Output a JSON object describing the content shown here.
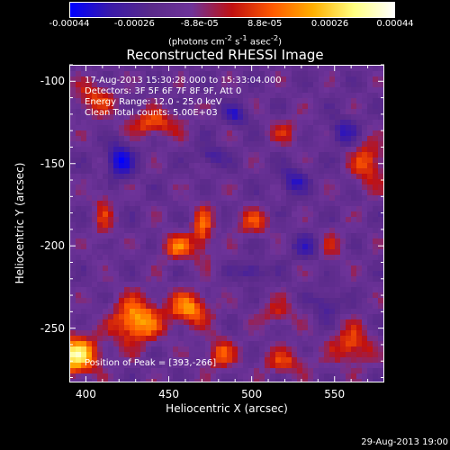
{
  "colorbar": {
    "ticks": [
      "-0.00044",
      "-0.00026",
      "-8.8e-05",
      "8.8e-05",
      "0.00026",
      "0.00044"
    ],
    "units_text": "(photons cm",
    "units_sup1": "-2",
    "units_mid": " s",
    "units_sup2": "-1",
    "units_end": " asec",
    "units_sup3": "-2",
    "units_close": ")",
    "colors": [
      "#0000ff",
      "#3a1aa8",
      "#5a2a8a",
      "#6e3399",
      "#c01010",
      "#ff5a00",
      "#ffb000",
      "#ffff80",
      "#ffffff"
    ]
  },
  "chart_data": {
    "type": "heatmap",
    "title": "Reconstructed RHESSI Image",
    "xlabel": "Heliocentric X (arcsec)",
    "ylabel": "Heliocentric Y (arcsec)",
    "xlim": [
      390,
      580
    ],
    "ylim": [
      -283,
      -90
    ],
    "xticks": [
      400,
      450,
      500,
      550
    ],
    "yticks": [
      -100,
      -150,
      -200,
      -250
    ],
    "info_lines": [
      "17-Aug-2013 15:30:28.000 to 15:33:04.000",
      "Detectors: 3F 5F 6F 7F 8F 9F, Att 0",
      "Energy Range: 12.0 - 25.0 keV",
      "Clean    Total counts: 5.00E+03"
    ],
    "peak_label": "Position of Peak = [393,-266]",
    "peak": [
      393,
      -266
    ],
    "features": [
      {
        "x": 393,
        "y": -266,
        "amp": 1.0,
        "sx": 14,
        "sy": 12
      },
      {
        "x": 430,
        "y": -245,
        "amp": 0.85,
        "sx": 14,
        "sy": 14
      },
      {
        "x": 462,
        "y": -238,
        "amp": 0.75,
        "sx": 12,
        "sy": 10
      },
      {
        "x": 455,
        "y": -200,
        "amp": 0.6,
        "sx": 10,
        "sy": 8
      },
      {
        "x": 470,
        "y": -190,
        "amp": 0.55,
        "sx": 6,
        "sy": 16
      },
      {
        "x": 440,
        "y": -125,
        "amp": 0.55,
        "sx": 16,
        "sy": 8
      },
      {
        "x": 405,
        "y": -110,
        "amp": 0.5,
        "sx": 12,
        "sy": 10
      },
      {
        "x": 570,
        "y": -150,
        "amp": 0.55,
        "sx": 10,
        "sy": 14
      },
      {
        "x": 560,
        "y": -260,
        "amp": 0.55,
        "sx": 12,
        "sy": 12
      },
      {
        "x": 520,
        "y": -270,
        "amp": 0.45,
        "sx": 14,
        "sy": 8
      },
      {
        "x": 500,
        "y": -185,
        "amp": 0.45,
        "sx": 10,
        "sy": 8
      },
      {
        "x": 545,
        "y": -200,
        "amp": 0.4,
        "sx": 10,
        "sy": 10
      },
      {
        "x": 480,
        "y": -265,
        "amp": 0.5,
        "sx": 10,
        "sy": 10
      },
      {
        "x": 515,
        "y": -240,
        "amp": 0.35,
        "sx": 12,
        "sy": 8
      },
      {
        "x": 410,
        "y": -180,
        "amp": 0.35,
        "sx": 6,
        "sy": 18
      },
      {
        "x": 520,
        "y": -130,
        "amp": 0.3,
        "sx": 10,
        "sy": 8
      },
      {
        "x": 420,
        "y": -148,
        "amp": -0.8,
        "sx": 8,
        "sy": 10
      },
      {
        "x": 490,
        "y": -120,
        "amp": -0.5,
        "sx": 8,
        "sy": 6
      },
      {
        "x": 525,
        "y": -160,
        "amp": -0.55,
        "sx": 8,
        "sy": 8
      },
      {
        "x": 535,
        "y": -200,
        "amp": -0.5,
        "sx": 10,
        "sy": 8
      },
      {
        "x": 500,
        "y": -215,
        "amp": -0.45,
        "sx": 8,
        "sy": 6
      },
      {
        "x": 555,
        "y": -130,
        "amp": -0.5,
        "sx": 8,
        "sy": 8
      },
      {
        "x": 475,
        "y": -145,
        "amp": -0.4,
        "sx": 8,
        "sy": 6
      },
      {
        "x": 545,
        "y": -235,
        "amp": -0.4,
        "sx": 8,
        "sy": 8
      }
    ]
  },
  "timestamp": "29-Aug-2013 19:00"
}
